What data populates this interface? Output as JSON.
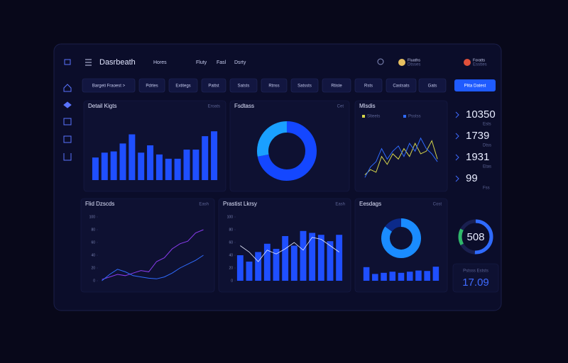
{
  "header": {
    "brand": "Dasrbeath",
    "nav": [
      "Hores",
      "Fluty",
      "Fasl",
      "Dsrty"
    ],
    "users": [
      {
        "name": "Fluaths",
        "role": "Dtsses"
      },
      {
        "name": "Foratts",
        "role": "Essttes"
      }
    ]
  },
  "toolbar": {
    "chips": [
      "Bargeti Fraoest >",
      "Pdrtes",
      "Extitegs",
      "Pattst",
      "Satsts",
      "Rtnss",
      "Satssts",
      "Rtiste",
      "Rsts",
      "Castsats",
      "Gats"
    ],
    "button": "Plita Datest"
  },
  "panels": [
    {
      "title": "Detail Kigts",
      "note": "Eroats",
      "chart": {
        "type": "bar",
        "values": [
          37,
          45,
          47,
          60,
          75,
          45,
          57,
          42,
          35,
          35,
          50,
          50,
          72,
          80
        ],
        "color": "#1f4fff",
        "ylim": [
          0,
          100
        ]
      }
    },
    {
      "title": "Fsdtass",
      "note": "Cet",
      "chart": {
        "type": "pie",
        "values": [
          72,
          28
        ],
        "colors": [
          "#1447ff",
          "#1aa0ff"
        ]
      }
    },
    {
      "title": "Mlsdis",
      "chart": {
        "type": "line",
        "ylim": [
          0,
          100
        ],
        "series": [
          {
            "name": "Slteets",
            "color": "#d6d64a",
            "values": [
              10,
              20,
              15,
              45,
              30,
              50,
              40,
              60,
              45,
              70,
              50,
              55,
              75,
              40
            ]
          },
          {
            "name": "Psstss",
            "color": "#2f6bff",
            "values": [
              5,
              25,
              35,
              60,
              40,
              55,
              65,
              45,
              70,
              55,
              80,
              60,
              50,
              35
            ]
          }
        ]
      }
    },
    {
      "title": "Flid Dzscds",
      "note": "Eash",
      "chart": {
        "type": "line",
        "ylim": [
          0,
          100
        ],
        "yticks": [
          0,
          20,
          40,
          60,
          80,
          100
        ],
        "series": [
          {
            "color": "#8a3cf0",
            "values": [
              2,
              6,
              10,
              8,
              12,
              16,
              14,
              30,
              36,
              50,
              58,
              62,
              75,
              80
            ]
          },
          {
            "color": "#2f6bff",
            "values": [
              0,
              10,
              18,
              14,
              8,
              6,
              4,
              3,
              6,
              12,
              20,
              26,
              32,
              40
            ]
          }
        ]
      }
    },
    {
      "title": "Prastist Lkrsy",
      "note": "Eash",
      "chart": {
        "type": "combo",
        "ylim": [
          0,
          100
        ],
        "yticks": [
          0,
          20,
          40,
          60,
          80,
          100
        ],
        "values": [
          40,
          30,
          45,
          58,
          50,
          70,
          55,
          78,
          75,
          72,
          62,
          72
        ],
        "color": "#1f4fff",
        "line": {
          "color": "#e8ecff",
          "values": [
            55,
            45,
            30,
            48,
            42,
            50,
            60,
            48,
            68,
            65,
            55,
            45
          ]
        }
      }
    },
    {
      "title": "Eesdags",
      "note": "Cost",
      "chart": {
        "type": "donut-bar",
        "ylim": [
          0,
          100
        ],
        "donut": [
          85,
          15
        ],
        "colors": [
          "#1a8cff",
          "#0c2a8a"
        ],
        "values": [
          60,
          30,
          35,
          40,
          35,
          40,
          45,
          43,
          62
        ],
        "color": "#1f4fff"
      }
    }
  ],
  "stats": [
    {
      "value": "10350",
      "label": "Ests"
    },
    {
      "value": "1739",
      "label": "Dtss"
    },
    {
      "value": "1931",
      "label": "Etas"
    },
    {
      "value": "99",
      "label": "Fss"
    }
  ],
  "gauge": {
    "value": 508,
    "max": 1000
  },
  "footer_stat": {
    "label": "Pstsss Eststs",
    "value": "17.09"
  }
}
